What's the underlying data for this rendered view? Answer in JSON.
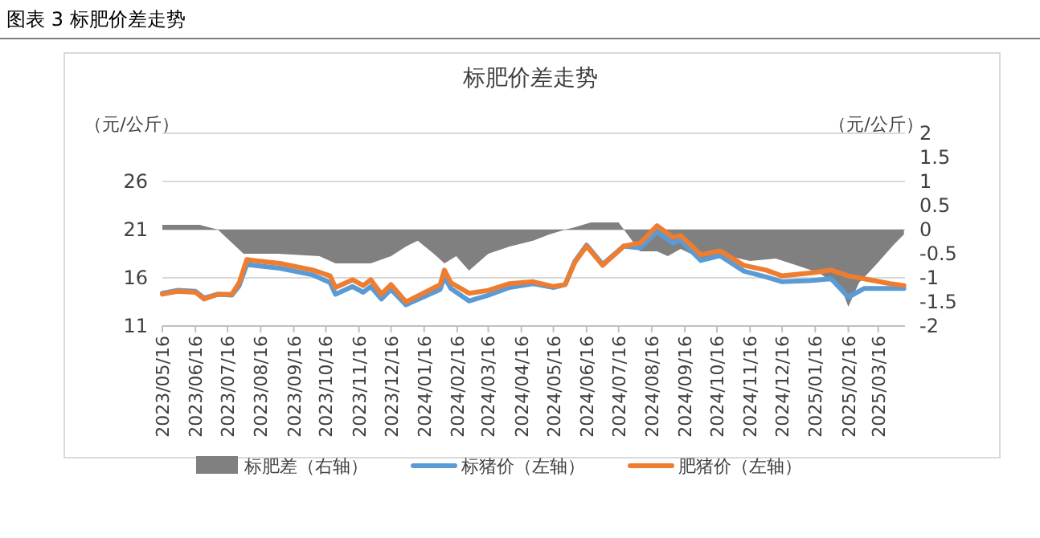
{
  "chart_data": {
    "type": "line",
    "title": "标肥价差走势",
    "annotations": [
      "图表 3 标肥价差走势"
    ],
    "ylabel": "（元/公斤）",
    "y2label": "（元/公斤）",
    "xlim": [
      "2023-05-16",
      "2025-04-10"
    ],
    "xticks": [
      {
        "value": "2023-05-16",
        "label": "2023/05/16"
      },
      {
        "value": "2023-06-16",
        "label": "2023/06/16"
      },
      {
        "value": "2023-07-16",
        "label": "2023/07/16"
      },
      {
        "value": "2023-08-16",
        "label": "2023/08/16"
      },
      {
        "value": "2023-09-16",
        "label": "2023/09/16"
      },
      {
        "value": "2023-10-16",
        "label": "2023/10/16"
      },
      {
        "value": "2023-11-16",
        "label": "2023/11/16"
      },
      {
        "value": "2023-12-16",
        "label": "2023/12/16"
      },
      {
        "value": "2024-01-16",
        "label": "2024/01/16"
      },
      {
        "value": "2024-02-16",
        "label": "2024/02/16"
      },
      {
        "value": "2024-03-16",
        "label": "2024/03/16"
      },
      {
        "value": "2024-04-16",
        "label": "2024/04/16"
      },
      {
        "value": "2024-05-16",
        "label": "2024/05/16"
      },
      {
        "value": "2024-06-16",
        "label": "2024/06/16"
      },
      {
        "value": "2024-07-16",
        "label": "2024/07/16"
      },
      {
        "value": "2024-08-16",
        "label": "2024/08/16"
      },
      {
        "value": "2024-09-16",
        "label": "2024/09/16"
      },
      {
        "value": "2024-10-16",
        "label": "2024/10/16"
      },
      {
        "value": "2024-11-16",
        "label": "2024/11/16"
      },
      {
        "value": "2024-12-16",
        "label": "2024/12/16"
      },
      {
        "value": "2025-01-16",
        "label": "2025/01/16"
      },
      {
        "value": "2025-02-16",
        "label": "2025/02/16"
      },
      {
        "value": "2025-03-16",
        "label": "2025/03/16"
      }
    ],
    "ylim": [
      11,
      31
    ],
    "yticks": [
      11,
      16,
      21,
      26,
      {
        "value": 31,
        "label": null
      }
    ],
    "y2lim": [
      -2,
      2
    ],
    "y2ticks": [
      -2,
      -1.5,
      -1,
      -0.5,
      0,
      0.5,
      1,
      1.5,
      2
    ],
    "grid": "y",
    "legend": "bottom",
    "series": [
      {
        "name": "标肥差（右轴）",
        "type": "area",
        "axis": "y2",
        "color": "#808080",
        "x": [
          "2023-05-16",
          "2023-06-20",
          "2023-07-07",
          "2023-07-31",
          "2023-09-01",
          "2023-10-10",
          "2023-10-25",
          "2023-11-27",
          "2023-12-16",
          "2023-12-30",
          "2024-01-10",
          "2024-01-25",
          "2024-02-04",
          "2024-02-15",
          "2024-02-27",
          "2024-03-16",
          "2024-04-05",
          "2024-04-27",
          "2024-05-12",
          "2024-05-27",
          "2024-06-05",
          "2024-06-20",
          "2024-07-16",
          "2024-07-21",
          "2024-08-05",
          "2024-08-21",
          "2024-08-31",
          "2024-09-12",
          "2024-10-01",
          "2024-10-27",
          "2024-11-16",
          "2024-12-10",
          "2024-12-31",
          "2025-01-20",
          "2025-02-10",
          "2025-02-16",
          "2025-02-26",
          "2025-03-13",
          "2025-03-31",
          "2025-04-09"
        ],
        "values": [
          0.1,
          0.1,
          0,
          -0.5,
          -0.5,
          -0.55,
          -0.7,
          -0.7,
          -0.55,
          -0.35,
          -0.23,
          -0.5,
          -0.7,
          -0.55,
          -0.85,
          -0.5,
          -0.35,
          -0.23,
          -0.1,
          0,
          0.05,
          0.15,
          0.15,
          0,
          -0.45,
          -0.45,
          -0.55,
          -0.4,
          -0.6,
          -0.55,
          -0.65,
          -0.6,
          -0.75,
          -0.9,
          -1.25,
          -1.6,
          -1.1,
          -0.75,
          -0.3,
          -0.1
        ]
      },
      {
        "name": "标猪价（左轴）",
        "color": "#5b9bd5",
        "x": [
          "2023-05-16",
          "2023-05-30",
          "2023-06-16",
          "2023-06-24",
          "2023-07-07",
          "2023-07-20",
          "2023-07-27",
          "2023-08-03",
          "2023-08-10",
          "2023-09-03",
          "2023-10-04",
          "2023-10-20",
          "2023-10-25",
          "2023-11-10",
          "2023-11-20",
          "2023-11-27",
          "2023-12-07",
          "2023-12-16",
          "2023-12-30",
          "2024-01-31",
          "2024-02-04",
          "2024-02-10",
          "2024-02-27",
          "2024-03-16",
          "2024-04-05",
          "2024-04-27",
          "2024-05-16",
          "2024-05-27",
          "2024-06-05",
          "2024-06-16",
          "2024-07-01",
          "2024-07-21",
          "2024-08-05",
          "2024-08-21",
          "2024-09-05",
          "2024-09-12",
          "2024-10-01",
          "2024-10-19",
          "2024-11-10",
          "2024-12-01",
          "2024-12-16",
          "2025-01-11",
          "2025-01-31",
          "2025-02-16",
          "2025-03-03",
          "2025-03-27",
          "2025-04-09"
        ],
        "values": [
          14.4,
          14.7,
          14.6,
          13.9,
          14.3,
          14.2,
          15.2,
          17.4,
          17.3,
          17.0,
          16.3,
          15.5,
          14.3,
          15.1,
          14.5,
          15.1,
          13.8,
          14.8,
          13.2,
          14.8,
          16.1,
          14.9,
          13.6,
          14.2,
          15.0,
          15.4,
          15.0,
          15.3,
          17.7,
          19.4,
          17.4,
          19.3,
          19.1,
          20.8,
          19.6,
          19.9,
          17.8,
          18.3,
          16.7,
          16.1,
          15.6,
          15.7,
          15.9,
          14.0,
          14.9,
          14.9,
          14.9
        ]
      },
      {
        "name": "肥猪价（左轴）",
        "color": "#ed7d31",
        "x": [
          "2023-05-16",
          "2023-05-30",
          "2023-06-16",
          "2023-06-24",
          "2023-07-07",
          "2023-07-20",
          "2023-07-27",
          "2023-08-03",
          "2023-08-10",
          "2023-09-03",
          "2023-10-04",
          "2023-10-20",
          "2023-10-25",
          "2023-11-10",
          "2023-11-20",
          "2023-11-27",
          "2023-12-07",
          "2023-12-16",
          "2023-12-30",
          "2024-01-31",
          "2024-02-04",
          "2024-02-10",
          "2024-02-27",
          "2024-03-16",
          "2024-04-05",
          "2024-04-27",
          "2024-05-16",
          "2024-05-27",
          "2024-06-05",
          "2024-06-16",
          "2024-07-01",
          "2024-07-21",
          "2024-08-05",
          "2024-08-21",
          "2024-09-05",
          "2024-09-12",
          "2024-10-01",
          "2024-10-19",
          "2024-11-10",
          "2024-12-01",
          "2024-12-16",
          "2025-01-11",
          "2025-01-31",
          "2025-02-16",
          "2025-03-03",
          "2025-03-27",
          "2025-04-09"
        ],
        "values": [
          14.3,
          14.6,
          14.5,
          13.8,
          14.3,
          14.3,
          15.5,
          17.9,
          17.8,
          17.5,
          16.8,
          16.2,
          15.0,
          15.8,
          15.2,
          15.8,
          14.3,
          15.3,
          13.5,
          15.3,
          16.8,
          15.5,
          14.4,
          14.7,
          15.4,
          15.6,
          15.1,
          15.3,
          17.6,
          19.3,
          17.3,
          19.3,
          19.6,
          21.4,
          20.2,
          20.4,
          18.4,
          18.8,
          17.3,
          16.8,
          16.2,
          16.5,
          16.8,
          16.2,
          15.9,
          15.4,
          15.2
        ]
      }
    ]
  }
}
